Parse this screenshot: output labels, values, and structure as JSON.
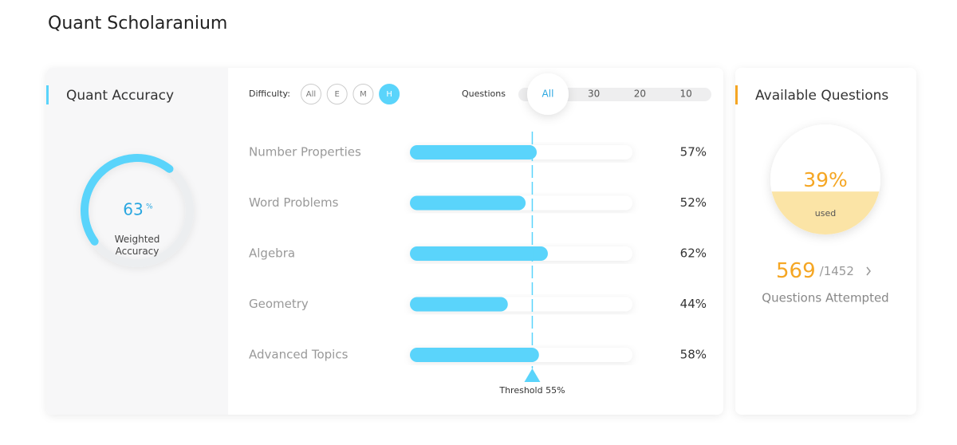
{
  "header": {
    "title": "Quant Scholaranium"
  },
  "accuracy": {
    "title": "Quant Accuracy",
    "value": 63,
    "unit": "%",
    "label": "Weighted Accuracy",
    "color": "#5ad4fb"
  },
  "filters": {
    "difficulty_label": "Difficulty:",
    "difficulty_options": [
      "All",
      "E",
      "M",
      "H"
    ],
    "difficulty_selected": 3,
    "questions_label": "Questions",
    "questions_options": [
      "All",
      "30",
      "20",
      "10"
    ],
    "questions_selected": 0
  },
  "chart_data": {
    "type": "bar",
    "orientation": "horizontal",
    "categories": [
      "Number Properties",
      "Word Problems",
      "Algebra",
      "Geometry",
      "Advanced Topics"
    ],
    "values": [
      57,
      52,
      62,
      44,
      58
    ],
    "value_labels": [
      "57%",
      "52%",
      "62%",
      "44%",
      "58%"
    ],
    "xlim": [
      0,
      100
    ],
    "color": "#5ad4fb",
    "threshold": 55,
    "threshold_label": "Threshold 55%"
  },
  "available": {
    "title": "Available Questions",
    "used_percent": 39,
    "used_percent_label": "39%",
    "used_label": "used",
    "attempted": 569,
    "separator": "/",
    "total": 1452,
    "attempted_label": "Questions Attempted"
  }
}
